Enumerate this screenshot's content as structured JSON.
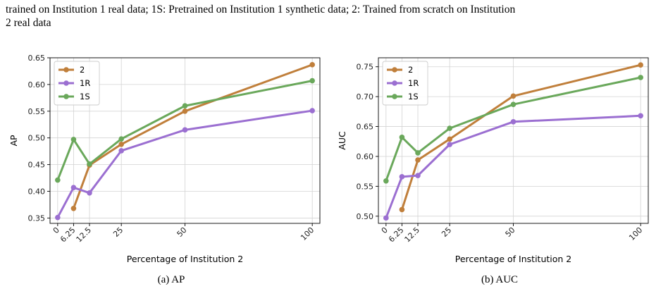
{
  "caption_top": {
    "line1": "trained on Institution 1 real data; 1S: Pretrained on Institution 1 synthetic data; 2: Trained from scratch on Institution",
    "line2": "2 real data"
  },
  "colors": {
    "2": "#c07f3b",
    "1R": "#9b6fd1",
    "1S": "#6aa85b"
  },
  "chart_data": [
    {
      "type": "line",
      "caption": "(a) AP",
      "xlabel": "Percentage of Institution 2",
      "ylabel": "AP",
      "x_ticks": [
        0,
        6.25,
        12.5,
        25,
        50,
        100
      ],
      "x_tick_labels": [
        "0",
        "6.25",
        "12.5",
        "25",
        "50",
        "100"
      ],
      "y_ticks": [
        0.35,
        0.4,
        0.45,
        0.5,
        0.55,
        0.6,
        0.65
      ],
      "y_tick_labels": [
        "0.35",
        "0.40",
        "0.45",
        "0.50",
        "0.55",
        "0.60",
        "0.65"
      ],
      "xlim": [
        -3,
        103
      ],
      "ylim": [
        0.34,
        0.65
      ],
      "grid": true,
      "legend": "top-left",
      "series": [
        {
          "name": "2",
          "x": [
            6.25,
            12.5,
            25,
            50,
            100
          ],
          "values": [
            0.368,
            0.449,
            0.488,
            0.55,
            0.637
          ]
        },
        {
          "name": "1R",
          "x": [
            0,
            6.25,
            12.5,
            25,
            50,
            100
          ],
          "values": [
            0.351,
            0.407,
            0.397,
            0.476,
            0.515,
            0.551
          ]
        },
        {
          "name": "1S",
          "x": [
            0,
            6.25,
            12.5,
            25,
            50,
            100
          ],
          "values": [
            0.421,
            0.497,
            0.451,
            0.498,
            0.56,
            0.607
          ]
        }
      ]
    },
    {
      "type": "line",
      "caption": "(b) AUC",
      "xlabel": "Percentage of Institution 2",
      "ylabel": "AUC",
      "x_ticks": [
        0,
        6.25,
        12.5,
        25,
        50,
        100
      ],
      "x_tick_labels": [
        "0",
        "6.25",
        "12.5",
        "25",
        "50",
        "100"
      ],
      "y_ticks": [
        0.5,
        0.55,
        0.6,
        0.65,
        0.7,
        0.75
      ],
      "y_tick_labels": [
        "0.50",
        "0.55",
        "0.60",
        "0.65",
        "0.70",
        "0.75"
      ],
      "xlim": [
        -3,
        103
      ],
      "ylim": [
        0.488,
        0.765
      ],
      "grid": true,
      "legend": "top-left",
      "series": [
        {
          "name": "2",
          "x": [
            6.25,
            12.5,
            25,
            50,
            100
          ],
          "values": [
            0.511,
            0.594,
            0.629,
            0.701,
            0.753
          ]
        },
        {
          "name": "1R",
          "x": [
            0,
            6.25,
            12.5,
            25,
            50,
            100
          ],
          "values": [
            0.497,
            0.566,
            0.568,
            0.62,
            0.658,
            0.668
          ]
        },
        {
          "name": "1S",
          "x": [
            0,
            6.25,
            12.5,
            25,
            50,
            100
          ],
          "values": [
            0.559,
            0.632,
            0.606,
            0.647,
            0.687,
            0.732
          ]
        }
      ]
    }
  ]
}
